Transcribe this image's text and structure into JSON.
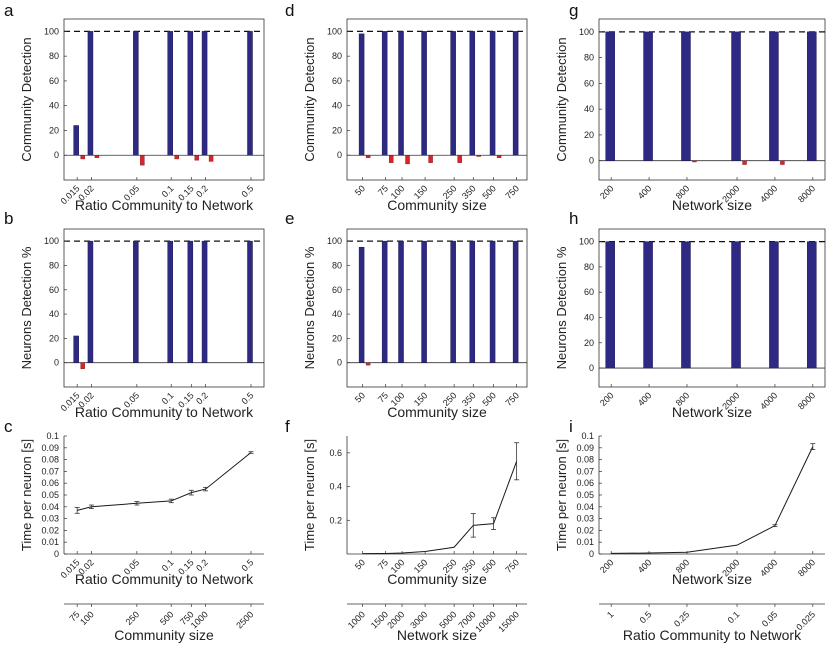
{
  "colors": {
    "bar_main": "#2e2a84",
    "bar_ctrl": "#d8242a",
    "line": "#1a1a1a"
  },
  "panels": [
    {
      "letter": "a",
      "type": "bar",
      "xlabel": "Ratio Community to Network",
      "ylabel": "Community Detection",
      "ylim": [
        -20,
        110
      ],
      "yticks": [
        0,
        20,
        40,
        60,
        80,
        100
      ],
      "xscale": "log",
      "xlim": [
        0.0115,
        0.65
      ],
      "reference_line": 100,
      "categories": [
        "0.015",
        "0.02",
        "0.05",
        "0.1",
        "0.15",
        "0.2",
        "0.5"
      ],
      "x": [
        0.015,
        0.02,
        0.05,
        0.1,
        0.15,
        0.2,
        0.5
      ],
      "series": [
        {
          "values": [
            24,
            100,
            100,
            100,
            100,
            100,
            100
          ]
        },
        {
          "values": [
            -3,
            -2,
            -8,
            -3,
            -4,
            -5,
            0
          ]
        }
      ]
    },
    {
      "letter": "d",
      "type": "bar",
      "xlabel": "Community size",
      "ylabel": "Community Detection",
      "ylim": [
        -20,
        110
      ],
      "yticks": [
        0,
        20,
        40,
        60,
        80,
        100
      ],
      "xscale": "log",
      "xlim": [
        38,
        900
      ],
      "reference_line": 100,
      "categories": [
        "50",
        "75",
        "100",
        "150",
        "250",
        "350",
        "500",
        "750"
      ],
      "x": [
        50,
        75,
        100,
        150,
        250,
        350,
        500,
        750
      ],
      "series": [
        {
          "values": [
            98,
            100,
            100,
            100,
            100,
            100,
            100,
            100
          ]
        },
        {
          "values": [
            -2,
            -6,
            -7,
            -6,
            -6,
            -1,
            -2,
            0
          ]
        }
      ]
    },
    {
      "letter": "g",
      "type": "bar",
      "xlabel": "Network size",
      "ylabel": "Community Detection",
      "ylim": [
        -15,
        110
      ],
      "yticks": [
        0,
        20,
        40,
        60,
        80,
        100
      ],
      "xscale": "log",
      "xlim": [
        160,
        10000
      ],
      "reference_line": 100,
      "categories": [
        "200",
        "400",
        "800",
        "2000",
        "4000",
        "8000"
      ],
      "x": [
        200,
        400,
        800,
        2000,
        4000,
        8000
      ],
      "series": [
        {
          "values": [
            100,
            100,
            100,
            100,
            100,
            100
          ]
        },
        {
          "values": [
            0,
            0,
            -1,
            -3,
            -3,
            0
          ]
        }
      ]
    },
    {
      "letter": "b",
      "type": "bar",
      "xlabel": "Ratio Community to Network",
      "ylabel": "Neurons Detection %",
      "ylim": [
        -20,
        110
      ],
      "yticks": [
        0,
        20,
        40,
        60,
        80,
        100
      ],
      "xscale": "log",
      "xlim": [
        0.0115,
        0.65
      ],
      "reference_line": 100,
      "categories": [
        "0.015",
        "0.02",
        "0.05",
        "0.1",
        "0.15",
        "0.2",
        "0.5"
      ],
      "x": [
        0.015,
        0.02,
        0.05,
        0.1,
        0.15,
        0.2,
        0.5
      ],
      "series": [
        {
          "values": [
            22,
            100,
            100,
            100,
            100,
            100,
            100
          ]
        },
        {
          "values": [
            -5,
            0,
            0,
            0,
            0,
            0,
            0
          ]
        }
      ]
    },
    {
      "letter": "e",
      "type": "bar",
      "xlabel": "Community size",
      "ylabel": "Neurons Detection %",
      "ylim": [
        -20,
        110
      ],
      "yticks": [
        0,
        20,
        40,
        60,
        80,
        100
      ],
      "xscale": "log",
      "xlim": [
        38,
        900
      ],
      "reference_line": 100,
      "categories": [
        "50",
        "75",
        "100",
        "150",
        "250",
        "350",
        "500",
        "750"
      ],
      "x": [
        50,
        75,
        100,
        150,
        250,
        350,
        500,
        750
      ],
      "series": [
        {
          "values": [
            95,
            100,
            100,
            100,
            100,
            100,
            100,
            100
          ]
        },
        {
          "values": [
            -2,
            0,
            0,
            0,
            0,
            0,
            0,
            0
          ]
        }
      ]
    },
    {
      "letter": "h",
      "type": "bar",
      "xlabel": "Network size",
      "ylabel": "Neurons Detection %",
      "ylim": [
        -15,
        110
      ],
      "yticks": [
        0,
        20,
        40,
        60,
        80,
        100
      ],
      "xscale": "log",
      "xlim": [
        160,
        10000
      ],
      "reference_line": 100,
      "categories": [
        "200",
        "400",
        "800",
        "2000",
        "4000",
        "8000"
      ],
      "x": [
        200,
        400,
        800,
        2000,
        4000,
        8000
      ],
      "series": [
        {
          "values": [
            100,
            100,
            100,
            100,
            100,
            100
          ]
        },
        {
          "values": [
            0,
            0,
            0,
            0,
            0,
            0
          ]
        }
      ]
    },
    {
      "letter": "c",
      "type": "line",
      "xlabel": "Ratio Community to Network",
      "ylabel": "Time per neuron [s]",
      "ylim": [
        0,
        0.1
      ],
      "yticks": [
        0,
        0.01,
        0.02,
        0.03,
        0.04,
        0.05,
        0.06,
        0.07,
        0.08,
        0.09,
        0.1
      ],
      "ytick_labels": [
        "0",
        "0.01",
        "0.02",
        "0.03",
        "0.04",
        "0.05",
        "0.06",
        "0.07",
        "0.08",
        "0.09",
        "0.1"
      ],
      "xscale": "log",
      "xlim": [
        0.0115,
        0.65
      ],
      "categories": [
        "0.015",
        "0.02",
        "0.05",
        "0.1",
        "0.15",
        "0.2",
        "0.5"
      ],
      "x": [
        0.015,
        0.02,
        0.05,
        0.1,
        0.15,
        0.2,
        0.5
      ],
      "y": [
        0.037,
        0.04,
        0.043,
        0.045,
        0.052,
        0.055,
        0.086
      ],
      "err": [
        0.0025,
        0.0015,
        0.0015,
        0.0015,
        0.002,
        0.0015,
        0.0007
      ],
      "second_axis": {
        "xlabel": "Community size",
        "tick_labels": [
          "75",
          "100",
          "250",
          "500",
          "750",
          "1000",
          "2500"
        ]
      }
    },
    {
      "letter": "f",
      "type": "line",
      "xlabel": "Community size",
      "ylabel": "Time per neuron [s]",
      "ylim": [
        0,
        0.7
      ],
      "yticks": [
        0.2,
        0.4,
        0.6
      ],
      "ytick_labels": [
        "0.2",
        "0.4",
        "0.6"
      ],
      "xscale": "log",
      "xlim": [
        38,
        900
      ],
      "categories": [
        "50",
        "75",
        "100",
        "150",
        "250",
        "350",
        "500",
        "750"
      ],
      "x": [
        50,
        75,
        100,
        150,
        250,
        350,
        500,
        750
      ],
      "y": [
        0.002,
        0.003,
        0.006,
        0.015,
        0.04,
        0.17,
        0.18,
        0.55
      ],
      "err": [
        0,
        0,
        0,
        0,
        0,
        0.07,
        0.035,
        0.11
      ],
      "second_axis": {
        "xlabel": "Network size",
        "tick_labels": [
          "1000",
          "1500",
          "2000",
          "3000",
          "5000",
          "7000",
          "10000",
          "15000"
        ]
      }
    },
    {
      "letter": "i",
      "type": "line",
      "xlabel": "Network size",
      "ylabel": "Time per neuron [s]",
      "ylim": [
        0,
        0.1
      ],
      "yticks": [
        0,
        0.01,
        0.02,
        0.03,
        0.04,
        0.05,
        0.06,
        0.07,
        0.08,
        0.09,
        0.1
      ],
      "ytick_labels": [
        "0",
        "0.01",
        "0.02",
        "0.03",
        "0.04",
        "0.05",
        "0.06",
        "0.07",
        "0.08",
        "0.09",
        "0.1"
      ],
      "xscale": "log",
      "xlim": [
        160,
        10000
      ],
      "categories": [
        "200",
        "400",
        "800",
        "2000",
        "4000",
        "8000"
      ],
      "x": [
        200,
        400,
        800,
        2000,
        4000,
        8000
      ],
      "y": [
        0.0005,
        0.0008,
        0.0015,
        0.0075,
        0.024,
        0.091
      ],
      "err": [
        0,
        0,
        0,
        0,
        0.0008,
        0.0025
      ],
      "second_axis": {
        "xlabel": "Ratio Community to Network",
        "tick_labels": [
          "1",
          "0.5",
          "0.25",
          "0.1",
          "0.05",
          "0.025"
        ]
      }
    }
  ]
}
